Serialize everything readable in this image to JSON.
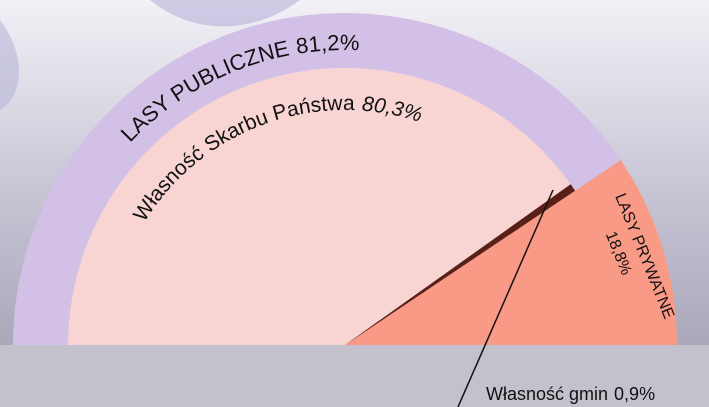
{
  "chart_data": {
    "type": "pie",
    "outer": {
      "categories": [
        "LASY PUBLICZNE",
        "LASY PRYWATNE"
      ],
      "values": [
        81.2,
        18.8
      ],
      "value_labels": [
        "81,2%",
        "18,8%"
      ],
      "colors": [
        "#d3c0e6",
        "#f89a85"
      ]
    },
    "inner": {
      "categories": [
        "Własność Skarbu Państwa",
        "Własność gmin"
      ],
      "values": [
        80.3,
        0.9
      ],
      "value_labels": [
        "80,3%",
        "0,9%"
      ],
      "colors": [
        "#f8d5d3",
        "#5a2018"
      ]
    }
  }
}
